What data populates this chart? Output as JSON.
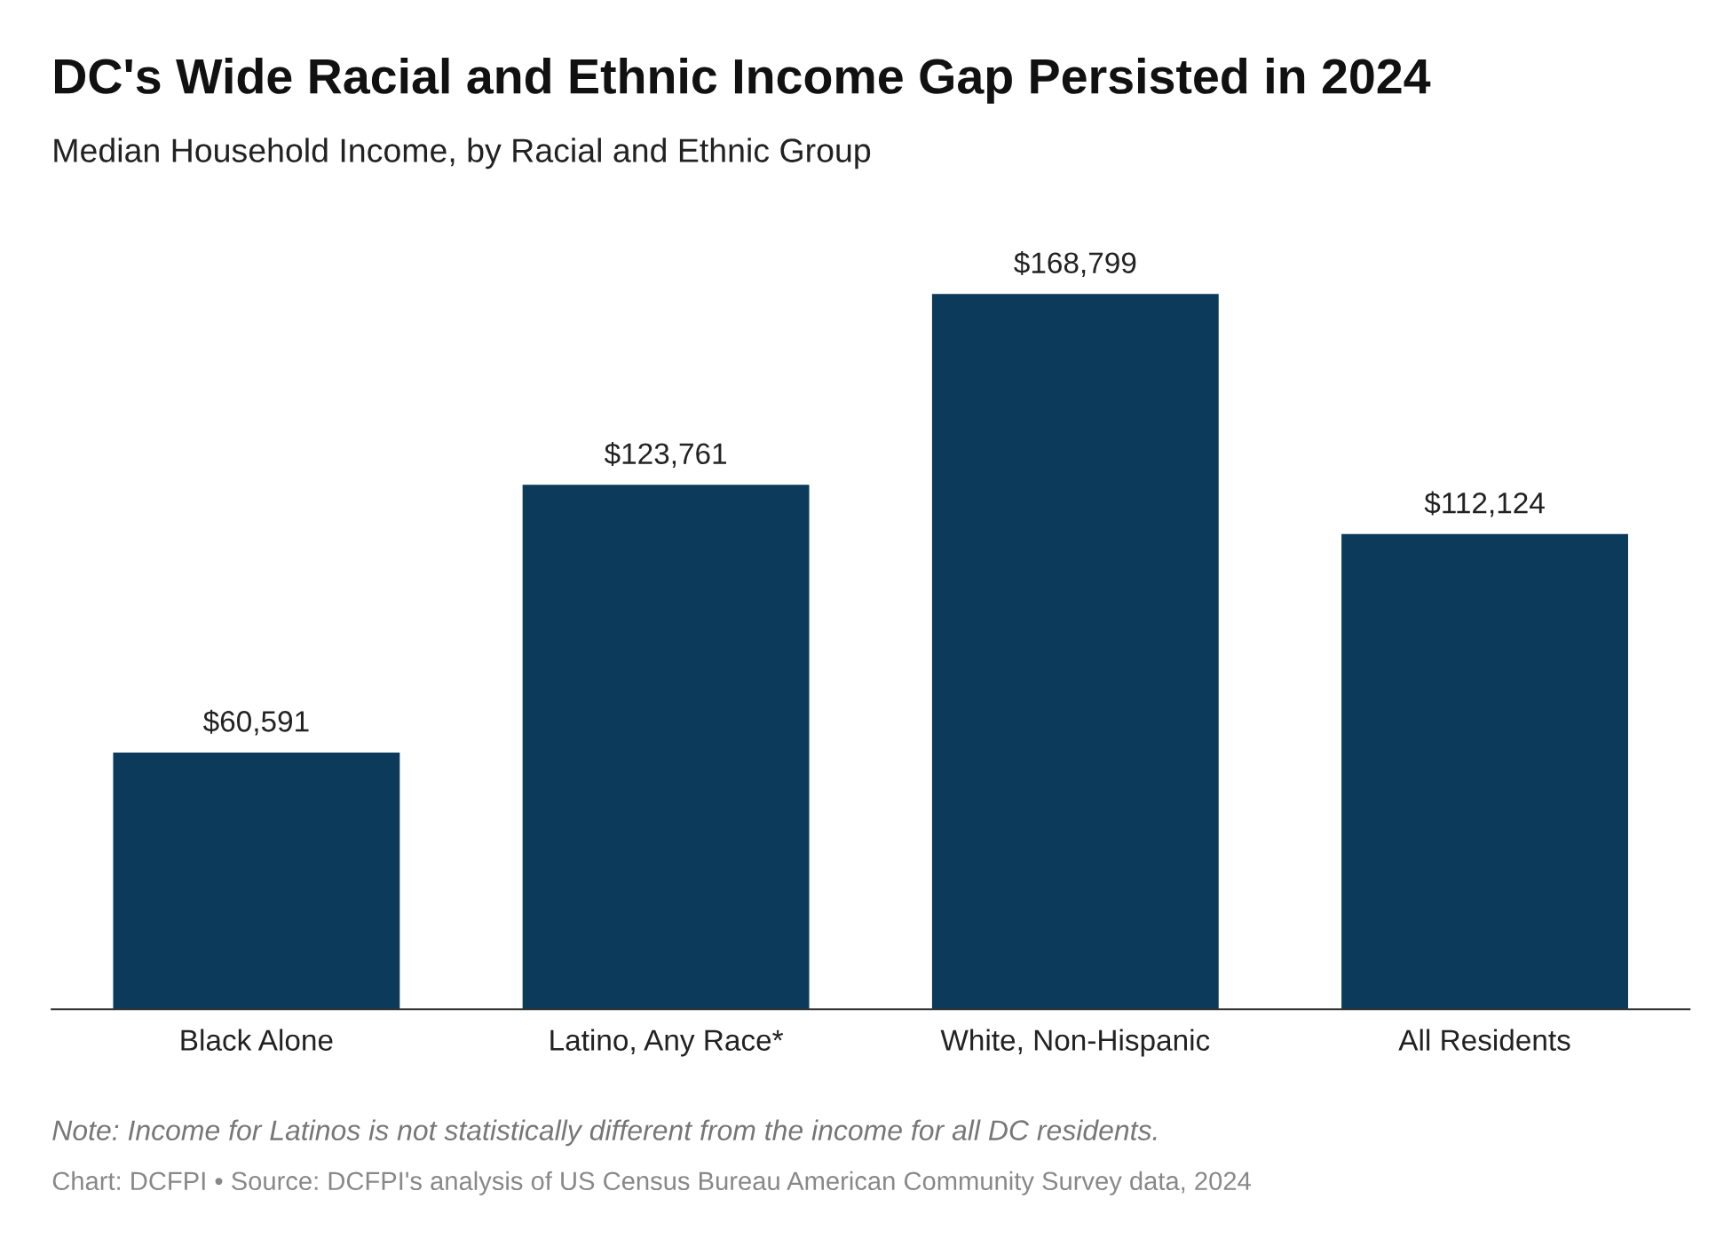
{
  "chart_data": {
    "type": "bar",
    "title": "DC's Wide Racial and Ethnic Income Gap Persisted in 2024",
    "subtitle": "Median Household Income, by Racial and Ethnic Group",
    "categories": [
      "Black Alone",
      "Latino, Any Race*",
      "White, Non-Hispanic",
      "All Residents"
    ],
    "values": [
      60591,
      123761,
      168799,
      112124
    ],
    "value_labels": [
      "$60,591",
      "$123,761",
      "$168,799",
      "$112,124"
    ],
    "color": "#0b3a5a",
    "grid": false,
    "legend": false,
    "tick_labels": "x",
    "annotations": [
      "Note: Income for Latinos is not statistically different from the income for all DC residents.",
      "Chart: DCFPI • Source: DCFPI's analysis of US Census Bureau American Community Survey data, 2024"
    ]
  }
}
